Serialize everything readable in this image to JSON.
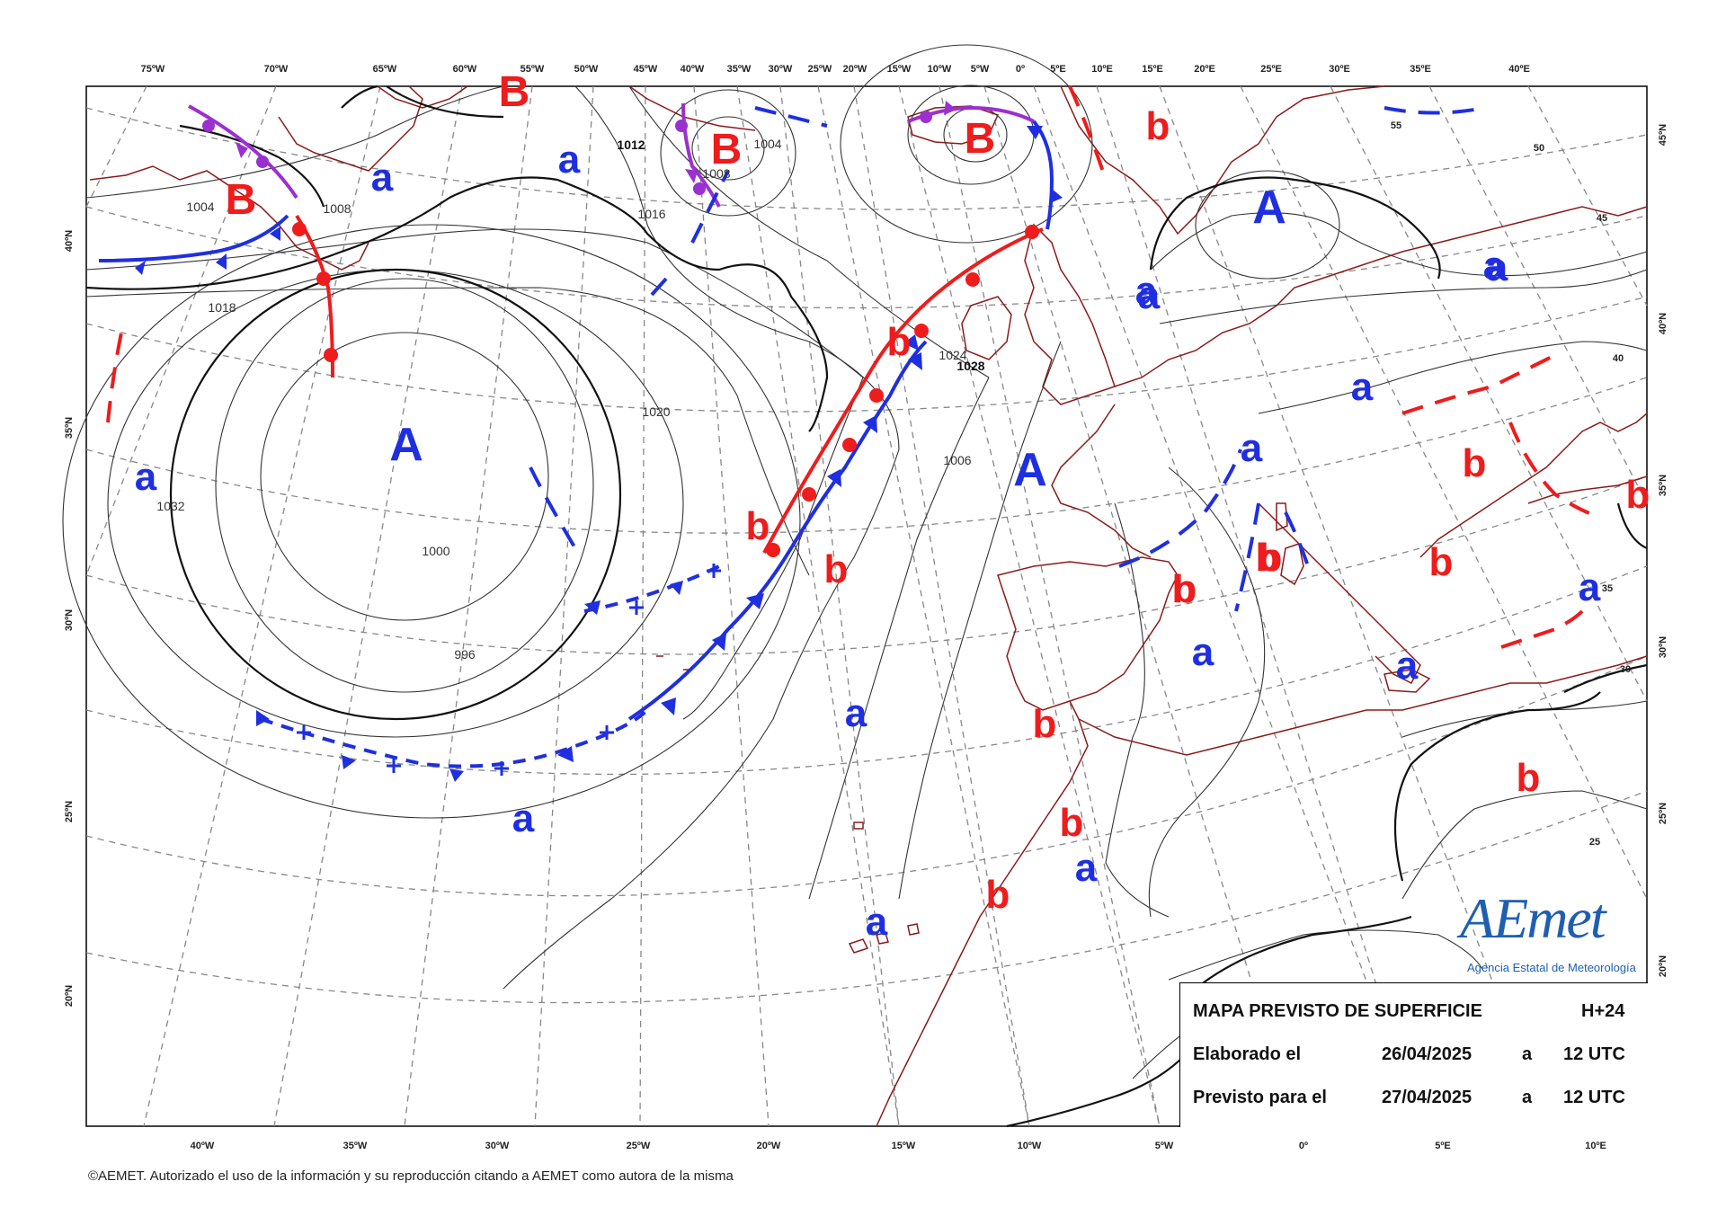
{
  "map": {
    "top_longitudes": [
      "75ºW",
      "70ºW",
      "65ºW",
      "60ºW",
      "55ºW",
      "50ºW",
      "45ºW",
      "40ºW",
      "35ºW",
      "30ºW",
      "25ºW",
      "20ºW",
      "15ºW",
      "10ºW",
      "5ºW",
      "0º",
      "5ºE",
      "10ºE",
      "15ºE",
      "20ºE",
      "25ºE",
      "30ºE",
      "35ºE",
      "40ºE"
    ],
    "bottom_longitudes": [
      "40ºW",
      "35ºW",
      "30ºW",
      "25ºW",
      "20ºW",
      "15ºW",
      "10ºW",
      "5ºW",
      "0º",
      "5ºE",
      "10ºE"
    ],
    "left_latitudes": [
      "40ºN",
      "35ºN",
      "30ºN",
      "25ºN",
      "20ºN"
    ],
    "right_latitudes": [
      "45ºN",
      "40ºN",
      "35ºN",
      "30ºN",
      "25ºN",
      "20ºN"
    ],
    "inner_latitudes": [
      "55",
      "50",
      "45",
      "40",
      "35",
      "30",
      "25"
    ],
    "high_centers": [
      "A",
      "A",
      "A"
    ],
    "low_centers": [
      "B",
      "B",
      "B",
      "B"
    ],
    "secondary_lows": [
      "b",
      "b",
      "b",
      "b",
      "b",
      "b",
      "b",
      "b",
      "b",
      "b",
      "b",
      "b",
      "b",
      "b",
      "b"
    ],
    "secondary_highs": [
      "a",
      "a",
      "a",
      "a",
      "a",
      "a",
      "a",
      "a",
      "a",
      "a",
      "a",
      "a",
      "a",
      "a",
      "a",
      "a"
    ],
    "isobar_labels": [
      "1004",
      "1008",
      "1012",
      "1016",
      "1018",
      "1020",
      "1024",
      "1028",
      "1032",
      "1000",
      "996",
      "1006",
      "1004",
      "1008"
    ],
    "colors": {
      "high": "#1f2fe0",
      "low": "#ee1c1c",
      "warm_front": "#ee1c1c",
      "cold_front": "#1f2fe0",
      "occluded_front": "#9b30d0",
      "coastline": "#8b1a1a",
      "isobar": "#333333",
      "grid": "#888888"
    }
  },
  "info": {
    "title": "MAPA PREVISTO DE SUPERFICIE",
    "lead": "H+24",
    "made_label": "Elaborado el",
    "made_date": "26/04/2025",
    "made_at": "a",
    "made_time": "12 UTC",
    "valid_label": "Previsto para el",
    "valid_date": "27/04/2025",
    "valid_at": "a",
    "valid_time": "12 UTC"
  },
  "logo": {
    "name": "AEmet",
    "subtitle": "Agencia Estatal de Meteorología"
  },
  "copyright": "©AEMET. Autorizado el uso de la información y su reproducción citando a AEMET como autora de la misma"
}
